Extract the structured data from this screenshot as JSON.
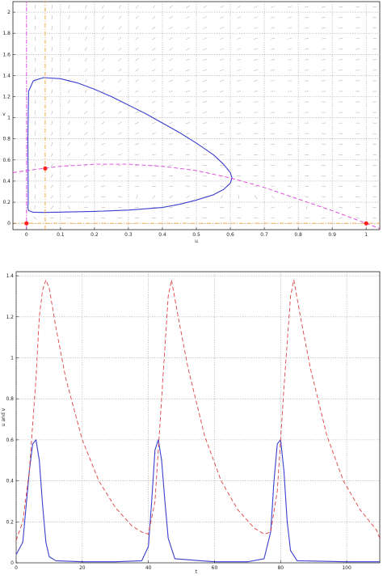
{
  "chart_data": [
    {
      "type": "line",
      "xlabel": "u",
      "ylabel": "v",
      "xlim": [
        -0.04,
        1.04
      ],
      "ylim": [
        -0.06,
        2.1
      ],
      "xticks": [
        "0",
        "0.1",
        "0.2",
        "0.3",
        "0.4",
        "0.5",
        "0.6",
        "0.7",
        "0.8",
        "0.9",
        "1"
      ],
      "yticks": [
        "0",
        "0.2",
        "0.4",
        "0.6",
        "0.8",
        "1",
        "1.2",
        "1.4",
        "1.6",
        "1.8",
        "2"
      ],
      "grid": true,
      "direction_field": true,
      "series": [
        {
          "style": "solid",
          "color": "#3a3fd0",
          "x": [
            0.005,
            0.004,
            0.006,
            0.02,
            0.05,
            0.1,
            0.15,
            0.2,
            0.25,
            0.3,
            0.35,
            0.4,
            0.45,
            0.5,
            0.55,
            0.58,
            0.6,
            0.605,
            0.6,
            0.58,
            0.55,
            0.5,
            0.45,
            0.4,
            0.3,
            0.2,
            0.1,
            0.05,
            0.02,
            0.006,
            0.004,
            0.005
          ],
          "y": [
            0.2,
            0.8,
            1.25,
            1.35,
            1.38,
            1.37,
            1.33,
            1.27,
            1.2,
            1.12,
            1.04,
            0.95,
            0.86,
            0.76,
            0.65,
            0.56,
            0.48,
            0.43,
            0.38,
            0.32,
            0.27,
            0.22,
            0.18,
            0.15,
            0.125,
            0.113,
            0.106,
            0.103,
            0.105,
            0.12,
            0.15,
            0.2
          ]
        },
        {
          "style": "dashed",
          "color": "#e040e0",
          "x": [
            -0.04,
            0.0,
            0.05,
            0.1,
            0.2,
            0.3,
            0.4,
            0.5,
            0.6,
            0.7,
            0.8,
            0.9,
            1.0,
            1.04
          ],
          "y": [
            0.48,
            0.5,
            0.52,
            0.54,
            0.56,
            0.56,
            0.54,
            0.5,
            0.43,
            0.34,
            0.23,
            0.12,
            0.0,
            -0.05
          ]
        },
        {
          "style": "dashdot",
          "color": "#e040e0",
          "x": [
            0.0,
            0.0
          ],
          "y": [
            -0.06,
            2.1
          ]
        },
        {
          "style": "dashdot",
          "color": "#f0a030",
          "x": [
            0.055,
            0.055
          ],
          "y": [
            -0.06,
            2.1
          ]
        },
        {
          "style": "dashdot",
          "color": "#f0a030",
          "x": [
            -0.04,
            1.04
          ],
          "y": [
            0.0,
            0.0
          ]
        },
        {
          "style": "markers",
          "color": "#ff2020",
          "x": [
            0.0,
            0.055,
            1.0
          ],
          "y": [
            0.0,
            0.52,
            0.0
          ]
        }
      ]
    },
    {
      "type": "line",
      "xlabel": "t",
      "ylabel": "u and v",
      "xlim": [
        0,
        110
      ],
      "ylim": [
        0,
        1.42
      ],
      "xticks": [
        "0",
        "20",
        "40",
        "60",
        "80",
        "100"
      ],
      "yticks": [
        "0",
        "0.2",
        "0.4",
        "0.6",
        "0.8",
        "1",
        "1.2",
        "1.4"
      ],
      "grid": true,
      "series": [
        {
          "style": "solid",
          "color": "#3a3fd0",
          "x": [
            0,
            2,
            4,
            5,
            6,
            7,
            8,
            9,
            10,
            12,
            20,
            30,
            38,
            40,
            41,
            42,
            43,
            44,
            45,
            46,
            48,
            60,
            70,
            75,
            77,
            78,
            79,
            80,
            81,
            82,
            83,
            85,
            100,
            110
          ],
          "y": [
            0.04,
            0.1,
            0.45,
            0.58,
            0.6,
            0.5,
            0.28,
            0.1,
            0.03,
            0.01,
            0.005,
            0.005,
            0.01,
            0.08,
            0.3,
            0.55,
            0.6,
            0.5,
            0.3,
            0.12,
            0.02,
            0.005,
            0.005,
            0.02,
            0.15,
            0.4,
            0.58,
            0.6,
            0.45,
            0.2,
            0.06,
            0.01,
            0.005,
            0.005
          ]
        },
        {
          "style": "dashed",
          "color": "#e04040",
          "x": [
            0,
            2,
            4,
            6,
            7,
            8,
            9,
            10,
            12,
            15,
            20,
            25,
            30,
            35,
            38,
            40,
            42,
            44,
            46,
            47,
            49,
            52,
            57,
            62,
            67,
            72,
            75,
            77,
            79,
            81,
            83,
            84,
            86,
            89,
            94,
            99,
            104,
            109,
            110
          ],
          "y": [
            0.11,
            0.2,
            0.45,
            0.9,
            1.2,
            1.33,
            1.38,
            1.34,
            1.15,
            0.9,
            0.6,
            0.4,
            0.27,
            0.18,
            0.15,
            0.14,
            0.3,
            0.8,
            1.3,
            1.38,
            1.2,
            0.95,
            0.62,
            0.4,
            0.26,
            0.17,
            0.14,
            0.15,
            0.35,
            0.85,
            1.3,
            1.38,
            1.2,
            0.95,
            0.62,
            0.4,
            0.26,
            0.16,
            0.12
          ]
        }
      ]
    }
  ]
}
